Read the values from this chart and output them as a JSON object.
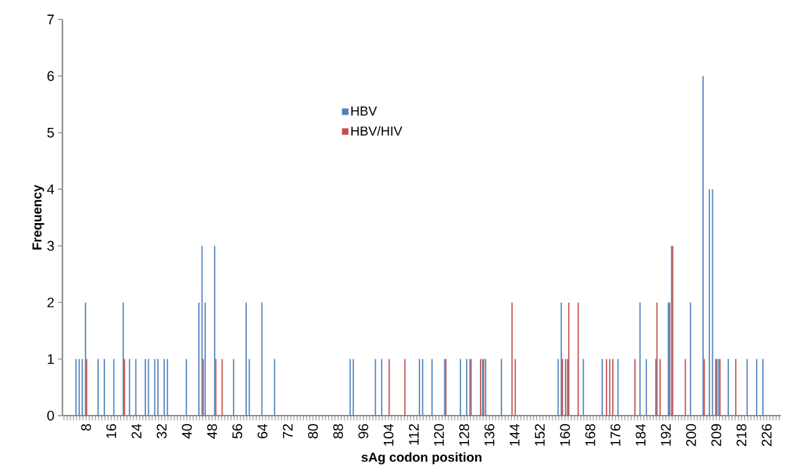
{
  "chart_data": {
    "type": "bar",
    "xlabel": "sAg codon position",
    "ylabel": "Frequency",
    "categories": [
      null,
      null,
      null,
      null,
      null,
      null,
      null,
      "8",
      null,
      null,
      null,
      null,
      null,
      null,
      null,
      "16",
      null,
      null,
      null,
      null,
      null,
      null,
      null,
      "24",
      null,
      null,
      null,
      null,
      null,
      null,
      null,
      "32",
      null,
      null,
      null,
      null,
      null,
      null,
      null,
      "40",
      null,
      null,
      null,
      null,
      null,
      null,
      null,
      "48",
      null,
      null,
      null,
      null,
      null,
      null,
      null,
      "56",
      null,
      null,
      null,
      null,
      null,
      null,
      null,
      "64",
      null,
      null,
      null,
      null,
      null,
      null,
      null,
      "72",
      null,
      null,
      null,
      null,
      null,
      null,
      null,
      "80",
      null,
      null,
      null,
      null,
      null,
      null,
      null,
      "88",
      null,
      null,
      null,
      null,
      null,
      null,
      null,
      "96",
      null,
      null,
      null,
      null,
      null,
      null,
      null,
      "104",
      null,
      null,
      null,
      null,
      null,
      null,
      null,
      "112",
      null,
      null,
      null,
      null,
      null,
      null,
      null,
      "120",
      null,
      null,
      null,
      null,
      null,
      null,
      null,
      "128",
      null,
      null,
      null,
      null,
      null,
      null,
      null,
      "136",
      null,
      null,
      null,
      null,
      null,
      null,
      null,
      "144",
      null,
      null,
      null,
      null,
      null,
      null,
      null,
      "152",
      null,
      null,
      null,
      null,
      null,
      null,
      null,
      "160",
      null,
      null,
      null,
      null,
      null,
      null,
      null,
      "168",
      null,
      null,
      null,
      null,
      null,
      null,
      null,
      "176",
      null,
      null,
      null,
      null,
      null,
      null,
      null,
      "184",
      null,
      null,
      null,
      null,
      null,
      null,
      null,
      "192",
      null,
      null,
      null,
      null,
      null,
      null,
      null,
      "200",
      null,
      null,
      null,
      null,
      null,
      null,
      null,
      "209",
      null,
      null,
      null,
      null,
      null,
      null,
      null,
      "218",
      null,
      null,
      null,
      null,
      null,
      null,
      null,
      "226",
      null,
      null,
      null,
      null
    ],
    "series": [
      {
        "name": "HBV",
        "color": "#4f81bd",
        "values": [
          0,
          0,
          0,
          0,
          1,
          1,
          1,
          2,
          0,
          0,
          0,
          1,
          0,
          1,
          0,
          0,
          1,
          0,
          0,
          2,
          0,
          1,
          0,
          1,
          0,
          0,
          1,
          1,
          0,
          1,
          1,
          0,
          1,
          1,
          0,
          0,
          0,
          0,
          0,
          1,
          0,
          0,
          0,
          2,
          3,
          2,
          0,
          0,
          3,
          0,
          0,
          0,
          0,
          0,
          1,
          0,
          0,
          0,
          2,
          1,
          0,
          0,
          0,
          2,
          0,
          0,
          0,
          1,
          0,
          0,
          0,
          0,
          0,
          0,
          0,
          0,
          0,
          0,
          0,
          0,
          0,
          0,
          0,
          0,
          0,
          0,
          0,
          0,
          0,
          0,
          0,
          1,
          1,
          0,
          0,
          0,
          0,
          0,
          0,
          1,
          0,
          1,
          0,
          0,
          0,
          0,
          0,
          0,
          0,
          0,
          0,
          0,
          0,
          1,
          1,
          0,
          0,
          1,
          0,
          0,
          0,
          1,
          0,
          0,
          0,
          0,
          1,
          0,
          1,
          1,
          0,
          0,
          0,
          1,
          1,
          0,
          0,
          0,
          0,
          1,
          0,
          0,
          0,
          0,
          0,
          0,
          0,
          0,
          0,
          0,
          0,
          0,
          0,
          0,
          0,
          0,
          0,
          1,
          2,
          0,
          1,
          0,
          0,
          0,
          0,
          1,
          0,
          0,
          0,
          0,
          0,
          1,
          0,
          0,
          0,
          0,
          1,
          0,
          0,
          0,
          0,
          0,
          0,
          2,
          0,
          1,
          0,
          0,
          1,
          0,
          0,
          0,
          2,
          3,
          0,
          0,
          0,
          0,
          0,
          2,
          0,
          0,
          0,
          6,
          0,
          4,
          4,
          1,
          1,
          0,
          0,
          1,
          0,
          0,
          0,
          0,
          0,
          1,
          0,
          0,
          1,
          0,
          1,
          0,
          0,
          0,
          0,
          0
        ]
      },
      {
        "name": "HBV/HIV",
        "color": "#c0504d",
        "values": [
          0,
          0,
          0,
          0,
          0,
          0,
          0,
          1,
          0,
          0,
          0,
          0,
          0,
          0,
          0,
          0,
          0,
          0,
          0,
          1,
          0,
          0,
          0,
          0,
          0,
          0,
          0,
          0,
          0,
          0,
          0,
          0,
          0,
          0,
          0,
          0,
          0,
          0,
          0,
          0,
          0,
          0,
          0,
          0,
          1,
          0,
          0,
          0,
          1,
          0,
          1,
          0,
          0,
          0,
          0,
          0,
          0,
          0,
          0,
          0,
          0,
          0,
          0,
          0,
          0,
          0,
          0,
          0,
          0,
          0,
          0,
          0,
          0,
          0,
          0,
          0,
          0,
          0,
          0,
          0,
          0,
          0,
          0,
          0,
          0,
          0,
          0,
          0,
          0,
          0,
          0,
          0,
          0,
          0,
          0,
          0,
          0,
          0,
          0,
          0,
          0,
          0,
          0,
          1,
          0,
          0,
          0,
          0,
          1,
          0,
          0,
          0,
          0,
          0,
          0,
          0,
          0,
          0,
          0,
          0,
          0,
          1,
          0,
          0,
          0,
          0,
          0,
          0,
          0,
          1,
          0,
          0,
          1,
          1,
          0,
          0,
          0,
          0,
          0,
          0,
          0,
          0,
          2,
          1,
          0,
          0,
          0,
          0,
          0,
          0,
          0,
          0,
          0,
          0,
          0,
          0,
          0,
          0,
          1,
          1,
          2,
          0,
          0,
          2,
          0,
          0,
          0,
          0,
          0,
          0,
          0,
          0,
          1,
          1,
          1,
          0,
          0,
          0,
          0,
          0,
          0,
          1,
          0,
          0,
          0,
          0,
          0,
          0,
          2,
          1,
          0,
          0,
          2,
          3,
          0,
          0,
          0,
          1,
          0,
          0,
          0,
          0,
          0,
          1,
          0,
          0,
          0,
          1,
          1,
          0,
          0,
          0,
          0,
          1,
          0,
          0,
          0,
          0,
          0,
          0,
          0,
          0,
          0,
          0,
          0,
          0,
          0,
          0
        ]
      }
    ],
    "ylim": [
      0,
      7
    ],
    "yticks": [
      0,
      1,
      2,
      3,
      4,
      5,
      6,
      7
    ],
    "grid": false,
    "legend": "top"
  }
}
